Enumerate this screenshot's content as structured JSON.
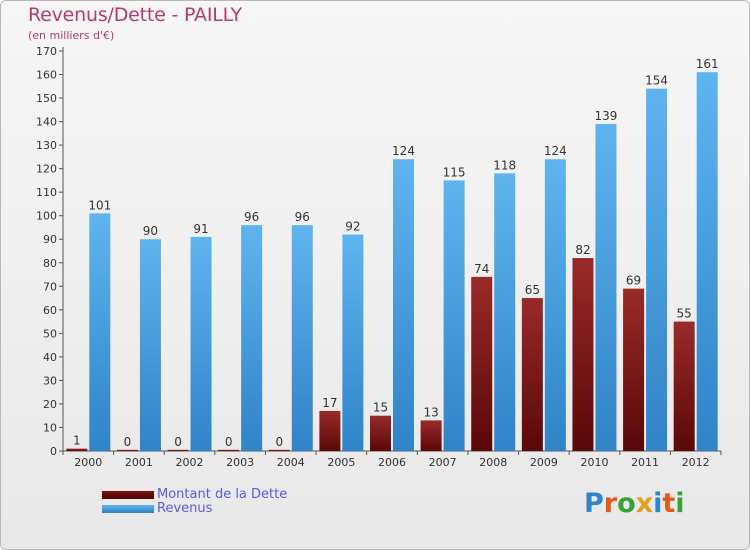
{
  "header": {
    "title": "Revenus/Dette - PAILLY",
    "subtitle": "(en milliers d'€)"
  },
  "legend": {
    "items": [
      {
        "label": "Montant de la Dette",
        "color": "#6b0f0f"
      },
      {
        "label": "Revenus",
        "color": "#4aa3e6"
      }
    ]
  },
  "logo": {
    "text": "Proxiti",
    "letters": [
      "P",
      "r",
      "o",
      "x",
      "i",
      "t",
      "i"
    ],
    "colors": [
      "#2e86c9",
      "#e05a1a",
      "#3aa13a",
      "#e0a01a",
      "#2e86c9",
      "#e05a1a",
      "#3aa13a"
    ]
  },
  "chart_data": {
    "type": "bar",
    "title": "Revenus/Dette - PAILLY",
    "ylabel": "(en milliers d'€)",
    "xlabel": "",
    "ylim": [
      0,
      170
    ],
    "ytick_step": 10,
    "grid": false,
    "legend_position": "bottom-left",
    "categories": [
      "2000",
      "2001",
      "2002",
      "2003",
      "2004",
      "2005",
      "2006",
      "2007",
      "2008",
      "2009",
      "2010",
      "2011",
      "2012"
    ],
    "series": [
      {
        "name": "Montant de la Dette",
        "values": [
          1,
          0,
          0,
          0,
          0,
          17,
          15,
          13,
          74,
          65,
          82,
          69,
          55
        ],
        "color": "#8a1c1c"
      },
      {
        "name": "Revenus",
        "values": [
          101,
          90,
          91,
          96,
          96,
          92,
          124,
          115,
          118,
          124,
          139,
          154,
          161
        ],
        "color": "#4aa3e6"
      }
    ]
  }
}
